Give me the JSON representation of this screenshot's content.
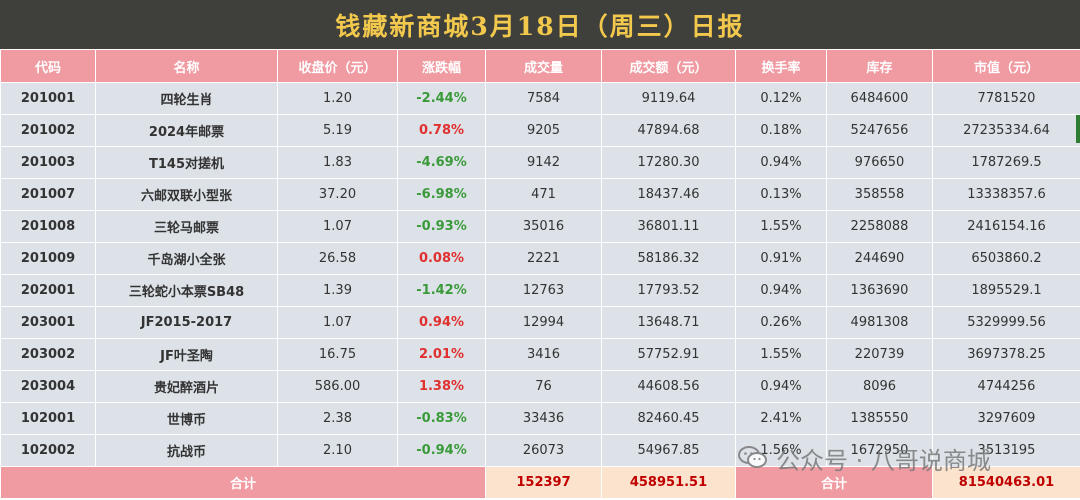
{
  "title": "钱藏新商城3月18日（周三）日报",
  "columns": [
    "代码",
    "名称",
    "收盘价（元）",
    "涨跌幅",
    "成交量",
    "成交额（元）",
    "换手率",
    "库存",
    "市值（元）"
  ],
  "rows": [
    {
      "code": "201001",
      "name": "四轮生肖",
      "close": "1.20",
      "change": "-2.44%",
      "dir": "down",
      "volume": "7584",
      "amount": "9119.64",
      "turnover": "0.12%",
      "stock": "6484600",
      "mktcap": "7781520"
    },
    {
      "code": "201002",
      "name": "2024年邮票",
      "close": "5.19",
      "change": "0.78%",
      "dir": "up",
      "volume": "9205",
      "amount": "47894.68",
      "turnover": "0.18%",
      "stock": "5247656",
      "mktcap": "27235334.64"
    },
    {
      "code": "201003",
      "name": "T145对搓机",
      "close": "1.83",
      "change": "-4.69%",
      "dir": "down",
      "volume": "9142",
      "amount": "17280.30",
      "turnover": "0.94%",
      "stock": "976650",
      "mktcap": "1787269.5"
    },
    {
      "code": "201007",
      "name": "六邮双联小型张",
      "close": "37.20",
      "change": "-6.98%",
      "dir": "down",
      "volume": "471",
      "amount": "18437.46",
      "turnover": "0.13%",
      "stock": "358558",
      "mktcap": "13338357.6"
    },
    {
      "code": "201008",
      "name": "三轮马邮票",
      "close": "1.07",
      "change": "-0.93%",
      "dir": "down",
      "volume": "35016",
      "amount": "36801.11",
      "turnover": "1.55%",
      "stock": "2258088",
      "mktcap": "2416154.16"
    },
    {
      "code": "201009",
      "name": "千岛湖小全张",
      "close": "26.58",
      "change": "0.08%",
      "dir": "up",
      "volume": "2221",
      "amount": "58186.32",
      "turnover": "0.91%",
      "stock": "244690",
      "mktcap": "6503860.2"
    },
    {
      "code": "202001",
      "name": "三轮蛇小本票SB48",
      "close": "1.39",
      "change": "-1.42%",
      "dir": "down",
      "volume": "12763",
      "amount": "17793.52",
      "turnover": "0.94%",
      "stock": "1363690",
      "mktcap": "1895529.1"
    },
    {
      "code": "203001",
      "name": "JF2015-2017",
      "close": "1.07",
      "change": "0.94%",
      "dir": "up",
      "volume": "12994",
      "amount": "13648.71",
      "turnover": "0.26%",
      "stock": "4981308",
      "mktcap": "5329999.56"
    },
    {
      "code": "203002",
      "name": "JF叶圣陶",
      "close": "16.75",
      "change": "2.01%",
      "dir": "up",
      "volume": "3416",
      "amount": "57752.91",
      "turnover": "1.55%",
      "stock": "220739",
      "mktcap": "3697378.25"
    },
    {
      "code": "203004",
      "name": "贵妃醉酒片",
      "close": "586.00",
      "change": "1.38%",
      "dir": "up",
      "volume": "76",
      "amount": "44608.56",
      "turnover": "0.94%",
      "stock": "8096",
      "mktcap": "4744256"
    },
    {
      "code": "102001",
      "name": "世博币",
      "close": "2.38",
      "change": "-0.83%",
      "dir": "down",
      "volume": "33436",
      "amount": "82460.45",
      "turnover": "2.41%",
      "stock": "1385550",
      "mktcap": "3297609"
    },
    {
      "code": "102002",
      "name": "抗战币",
      "close": "2.10",
      "change": "-0.94%",
      "dir": "down",
      "volume": "26073",
      "amount": "54967.85",
      "turnover": "1.56%",
      "stock": "1672950",
      "mktcap": "3513195"
    }
  ],
  "totals": {
    "label_left": "合计",
    "volume": "152397",
    "amount": "458951.51",
    "label_right": "合计",
    "mktcap": "81540463.01"
  },
  "watermark": {
    "text": "公众号 · 八哥说商城",
    "icon": "wechat-icon"
  },
  "colors": {
    "title_bg": "#3f3f3b",
    "title_text": "#f2c94c",
    "header_bg": "#f09aa2",
    "row_bg": "#dce2e7",
    "up": "#e0302f",
    "down": "#3a9a3a",
    "total_bg": "#fbe3cd",
    "total_text": "#c00000"
  }
}
